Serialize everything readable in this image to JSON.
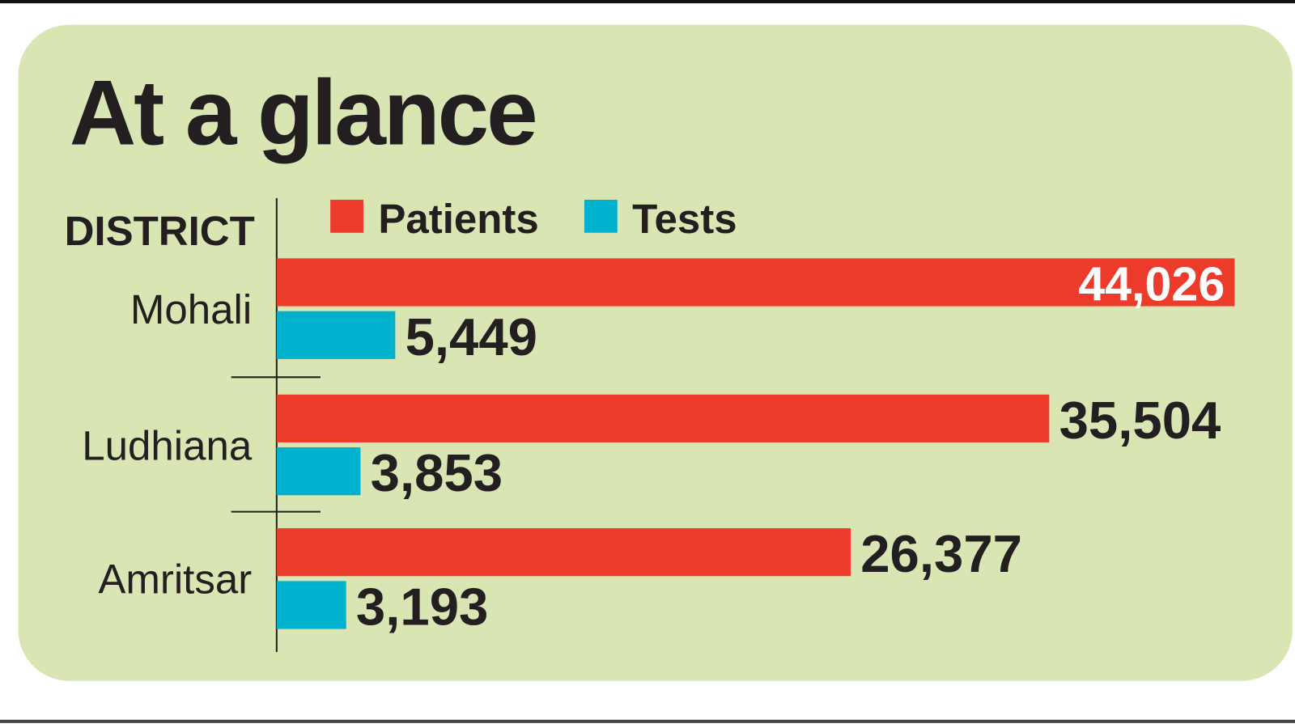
{
  "chart_data": {
    "type": "hbar",
    "title": "At a glance",
    "ylabel": "DISTRICT",
    "categories": [
      "Mohali",
      "Ludhiana",
      "Amritsar"
    ],
    "series": [
      {
        "name": "Patients",
        "color": "#ec3b2b",
        "values": [
          44026,
          35504,
          26377
        ],
        "value_labels": [
          "44,026",
          "35,504",
          "26,377"
        ]
      },
      {
        "name": "Tests",
        "color": "#00b1cd",
        "values": [
          5449,
          3853,
          3193
        ],
        "value_labels": [
          "5,449",
          "3,853",
          "3,193"
        ]
      }
    ]
  }
}
